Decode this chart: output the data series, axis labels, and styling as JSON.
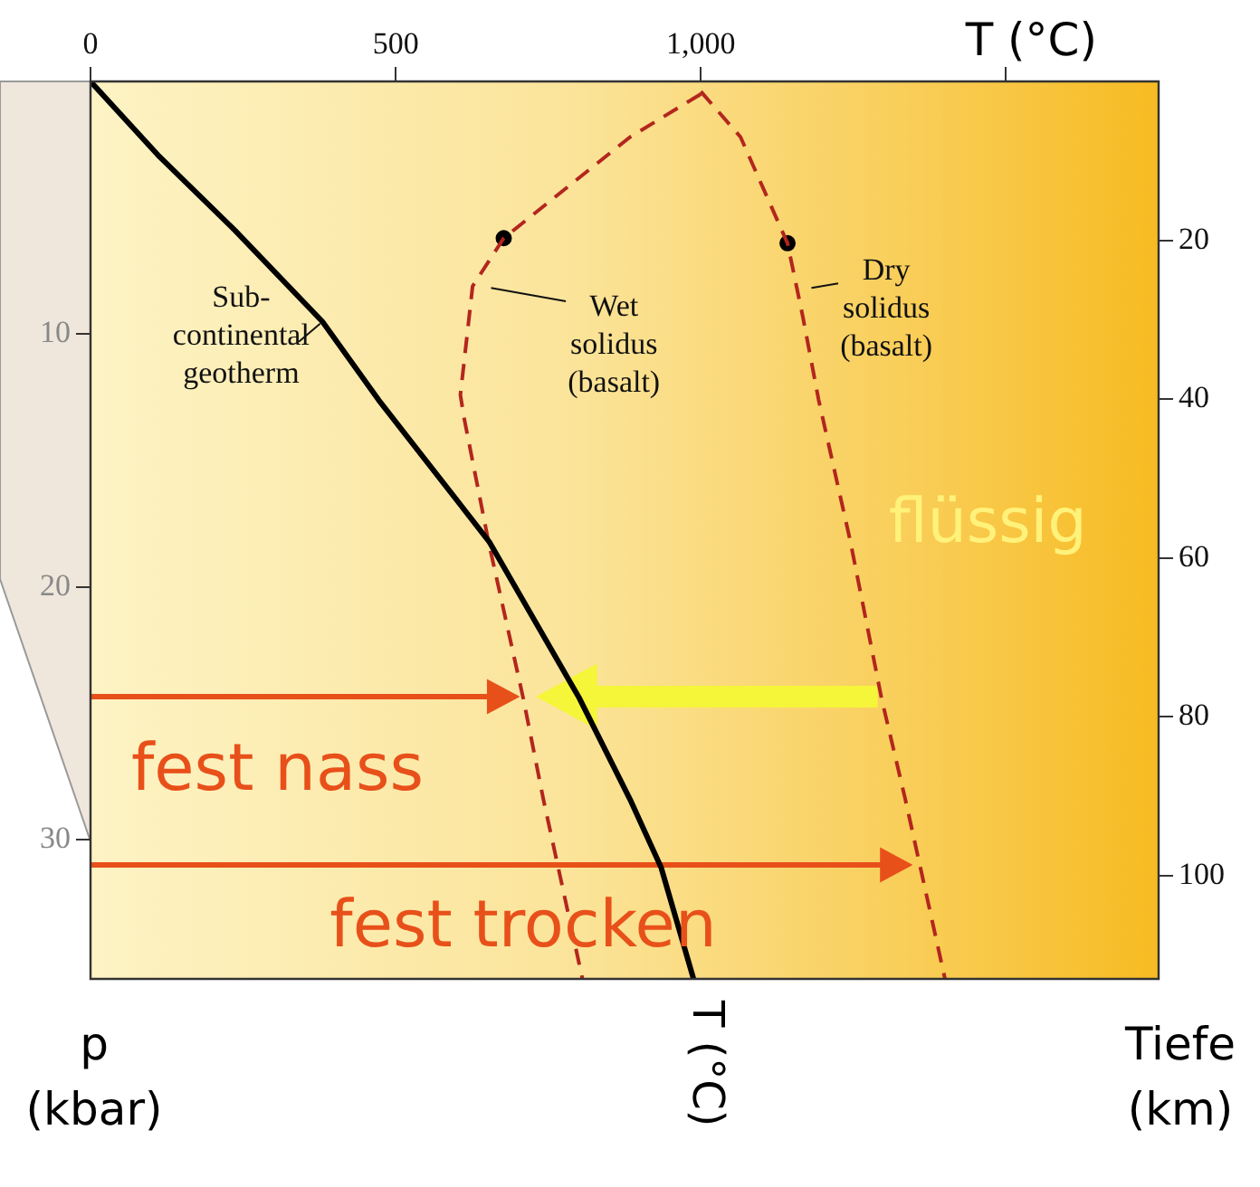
{
  "chart_data": {
    "type": "line",
    "xlabel": "T (°C)",
    "ylabel": "p (kbar)",
    "y2label": "Tiefe (km)",
    "xlim": [
      0,
      1750
    ],
    "xticks": [
      0,
      500,
      {
        "value": 1000,
        "label": "1,000"
      },
      {
        "value": 1500,
        "label": null
      }
    ],
    "ylim": [
      35.5,
      0
    ],
    "yticks": [
      10,
      20,
      30
    ],
    "y2lim": [
      113,
      0
    ],
    "y2ticks": [
      20,
      40,
      60,
      80,
      100
    ],
    "grid": false,
    "legend": false,
    "marker": "none",
    "series": [
      {
        "name": "Sub-continental geotherm",
        "color": "#000000",
        "line_style": "solid",
        "x": [
          0,
          110,
          237,
          380,
          472,
          653,
          801,
          884,
          935,
          988
        ],
        "values": [
          0,
          2.9,
          5.9,
          9.5,
          12.6,
          18.2,
          24.4,
          28.4,
          31.1,
          35.5
        ]
      },
      {
        "name": "Wet solidus (basalt)",
        "color": "#b3261e",
        "line_style": "dashed",
        "x": [
          1000,
          884,
          677,
          626,
          606,
          612,
          652,
          709,
          742,
          806
        ],
        "values": [
          0.5,
          2.2,
          6.2,
          8.1,
          12.4,
          13.3,
          18.2,
          24.4,
          28.4,
          35.5
        ]
      },
      {
        "name": "Dry solidus (basalt)",
        "color": "#b3261e",
        "line_style": "dashed",
        "x": [
          1000,
          1065,
          1142,
          1167,
          1193,
          1245,
          1296,
          1335,
          1400
        ],
        "values": [
          0.4,
          2.2,
          6.4,
          9.3,
          12.6,
          18.2,
          24.4,
          28.4,
          35.5
        ]
      },
      {
        "type": "scatter",
        "marker": "circle",
        "color": "#000000",
        "x": [
          677,
          1142
        ],
        "values": [
          6.2,
          6.4
        ]
      }
    ],
    "annotations": [
      "fest nass",
      "fest trocken",
      "flüssig",
      {
        "text": "T (°C)",
        "x": 988,
        "y": 35.5
      }
    ]
  }
}
